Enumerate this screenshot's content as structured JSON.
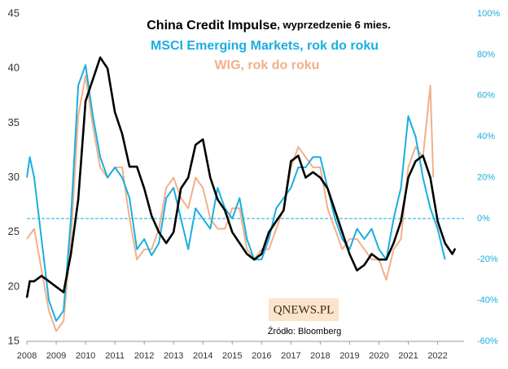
{
  "chart_data": {
    "type": "line",
    "note": ", wyprzedzenie 6 mies.",
    "source": "Źródło: Bloomberg",
    "logo": "QNEWS.PL",
    "xlim": [
      2008,
      2022.9
    ],
    "xticks": [
      2008,
      2009,
      2010,
      2011,
      2012,
      2013,
      2014,
      2015,
      2016,
      2017,
      2018,
      2019,
      2020,
      2021,
      2022
    ],
    "ylim": [
      15,
      45
    ],
    "yticks": [
      15,
      20,
      25,
      30,
      35,
      40,
      45
    ],
    "y2lim": [
      -60,
      100
    ],
    "y2ticks": [
      {
        "value": -60,
        "label": "-60%"
      },
      {
        "value": -40,
        "label": "-40%"
      },
      {
        "value": -20,
        "label": "-20%"
      },
      {
        "value": 0,
        "label": "0%"
      },
      {
        "value": 20,
        "label": "20%"
      },
      {
        "value": 40,
        "label": "40%"
      },
      {
        "value": 60,
        "label": "60%"
      },
      {
        "value": 80,
        "label": "80%"
      },
      {
        "value": 100,
        "label": "100%"
      }
    ],
    "ref_line_y2": 0,
    "series": [
      {
        "name": "China Credit Impulse",
        "color": "#000000",
        "x": [
          2008.0,
          2008.1,
          2008.25,
          2008.5,
          2008.75,
          2009.0,
          2009.25,
          2009.5,
          2009.75,
          2010.0,
          2010.25,
          2010.5,
          2010.75,
          2011.0,
          2011.25,
          2011.5,
          2011.75,
          2012.0,
          2012.25,
          2012.5,
          2012.75,
          2013.0,
          2013.25,
          2013.5,
          2013.75,
          2014.0,
          2014.25,
          2014.5,
          2014.75,
          2015.0,
          2015.25,
          2015.5,
          2015.75,
          2016.0,
          2016.25,
          2016.5,
          2016.75,
          2017.0,
          2017.25,
          2017.5,
          2017.75,
          2018.0,
          2018.25,
          2018.5,
          2018.75,
          2019.0,
          2019.25,
          2019.5,
          2019.75,
          2020.0,
          2020.25,
          2020.5,
          2020.75,
          2021.0,
          2021.25,
          2021.5,
          2021.75,
          2022.0,
          2022.25,
          2022.5,
          2022.6
        ],
        "values": [
          19,
          20.5,
          20.5,
          21,
          20.5,
          20,
          19.5,
          23,
          28,
          37,
          39,
          41,
          40,
          36,
          34,
          31,
          31,
          29,
          26.5,
          25,
          24,
          25,
          29,
          30,
          33,
          33.5,
          30,
          28,
          27,
          25,
          24,
          23,
          22.5,
          23,
          25,
          26,
          27,
          31.5,
          32,
          30,
          30.5,
          30,
          29,
          27,
          25,
          23,
          21.5,
          22,
          23,
          22.5,
          22.5,
          24,
          26,
          30,
          31.5,
          32,
          30,
          26,
          24,
          23,
          23.5
        ]
      },
      {
        "name": "MSCI Emerging Markets, rok do roku",
        "color": "#1aaee0",
        "axis": "y2",
        "x": [
          2008.0,
          2008.1,
          2008.25,
          2008.5,
          2008.75,
          2009.0,
          2009.25,
          2009.5,
          2009.75,
          2010.0,
          2010.25,
          2010.5,
          2010.75,
          2011.0,
          2011.25,
          2011.5,
          2011.75,
          2012.0,
          2012.25,
          2012.5,
          2012.75,
          2013.0,
          2013.25,
          2013.5,
          2013.75,
          2014.0,
          2014.25,
          2014.5,
          2014.75,
          2015.0,
          2015.25,
          2015.5,
          2015.75,
          2016.0,
          2016.25,
          2016.5,
          2016.75,
          2017.0,
          2017.25,
          2017.5,
          2017.75,
          2018.0,
          2018.25,
          2018.5,
          2018.75,
          2019.0,
          2019.25,
          2019.5,
          2019.75,
          2020.0,
          2020.25,
          2020.5,
          2020.75,
          2021.0,
          2021.25,
          2021.5,
          2021.75,
          2022.0,
          2022.25
        ],
        "values": [
          20,
          30,
          20,
          -10,
          -40,
          -50,
          -45,
          0,
          65,
          75,
          50,
          30,
          20,
          25,
          20,
          10,
          -15,
          -10,
          -18,
          -12,
          10,
          15,
          0,
          -15,
          5,
          0,
          -5,
          15,
          5,
          0,
          10,
          -10,
          -20,
          -20,
          -10,
          5,
          10,
          15,
          25,
          25,
          30,
          30,
          15,
          0,
          -10,
          -15,
          -5,
          -10,
          -5,
          -15,
          -20,
          0,
          15,
          50,
          40,
          20,
          5,
          -5,
          -20
        ]
      },
      {
        "name": "WIG, rok do roku",
        "color": "#f2b08a",
        "axis": "y2",
        "x": [
          2008.0,
          2008.25,
          2008.5,
          2008.75,
          2009.0,
          2009.25,
          2009.5,
          2009.75,
          2010.0,
          2010.25,
          2010.5,
          2010.75,
          2011.0,
          2011.25,
          2011.5,
          2011.75,
          2012.0,
          2012.25,
          2012.5,
          2012.75,
          2013.0,
          2013.25,
          2013.5,
          2013.75,
          2014.0,
          2014.25,
          2014.5,
          2014.75,
          2015.0,
          2015.25,
          2015.5,
          2015.75,
          2016.0,
          2016.25,
          2016.5,
          2016.75,
          2017.0,
          2017.25,
          2017.5,
          2017.75,
          2018.0,
          2018.25,
          2018.5,
          2018.75,
          2019.0,
          2019.25,
          2019.5,
          2019.75,
          2020.0,
          2020.25,
          2020.5,
          2020.75,
          2021.0,
          2021.25,
          2021.5,
          2021.75,
          2021.85
        ],
        "values": [
          -10,
          -5,
          -25,
          -45,
          -55,
          -50,
          -10,
          50,
          70,
          45,
          25,
          20,
          25,
          25,
          0,
          -20,
          -15,
          -15,
          -5,
          15,
          20,
          10,
          5,
          20,
          15,
          0,
          -5,
          -5,
          5,
          5,
          -15,
          -20,
          -15,
          -15,
          -5,
          5,
          25,
          35,
          30,
          25,
          25,
          5,
          -5,
          -15,
          -10,
          -10,
          -15,
          -20,
          -20,
          -30,
          -15,
          -10,
          25,
          35,
          30,
          65,
          20
        ]
      }
    ]
  }
}
